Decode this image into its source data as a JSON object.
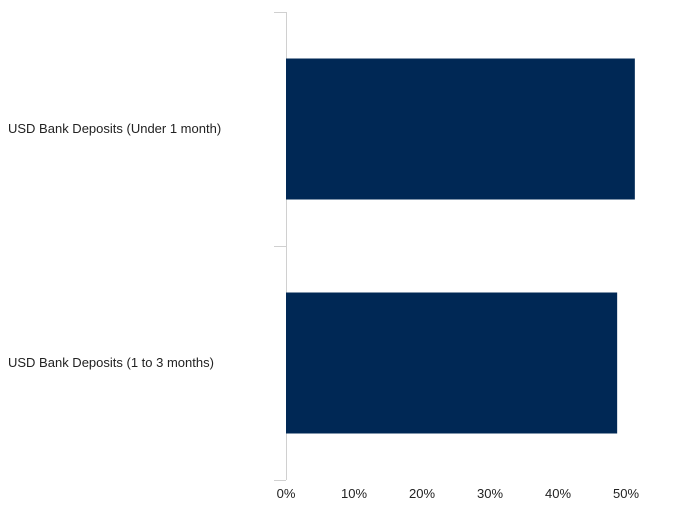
{
  "chart_data": {
    "type": "bar",
    "orientation": "horizontal",
    "categories": [
      "USD Bank Deposits (Under 1 month)",
      "USD Bank Deposits (1 to 3 months)"
    ],
    "values": [
      51.3,
      48.7
    ],
    "value_unit": "%",
    "xlim": [
      0,
      60
    ],
    "xticks": [
      "0%",
      "10%",
      "20%",
      "30%",
      "40%",
      "50%"
    ],
    "bar_color": "#002855",
    "grid": false,
    "legend": "none"
  }
}
